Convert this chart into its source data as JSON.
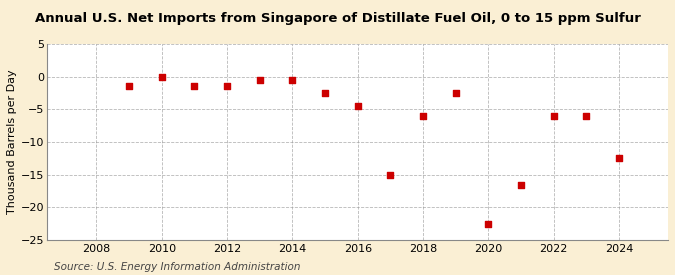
{
  "title": "Annual U.S. Net Imports from Singapore of Distillate Fuel Oil, 0 to 15 ppm Sulfur",
  "ylabel": "Thousand Barrels per Day",
  "source": "Source: U.S. Energy Information Administration",
  "background_color": "#faefd4",
  "plot_background_color": "#ffffff",
  "years": [
    2009,
    2010,
    2011,
    2012,
    2013,
    2014,
    2015,
    2016,
    2017,
    2018,
    2019,
    2020,
    2021,
    2022,
    2023,
    2024
  ],
  "values": [
    -1.5,
    0,
    -1.5,
    -1.5,
    -0.5,
    -0.5,
    -2.5,
    -4.5,
    -15,
    -6,
    -2.5,
    -22.5,
    -16.5,
    -6,
    -6,
    -12.5
  ],
  "marker_color": "#cc0000",
  "ylim": [
    -25,
    5
  ],
  "yticks": [
    5,
    0,
    -5,
    -10,
    -15,
    -20,
    -25
  ],
  "xlim": [
    2006.5,
    2025.5
  ],
  "xticks": [
    2008,
    2010,
    2012,
    2014,
    2016,
    2018,
    2020,
    2022,
    2024
  ],
  "title_fontsize": 9.5,
  "label_fontsize": 8,
  "tick_fontsize": 8,
  "source_fontsize": 7.5
}
